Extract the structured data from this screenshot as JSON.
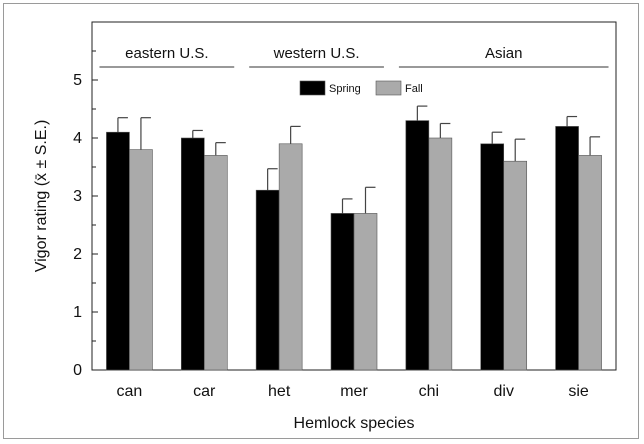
{
  "chart_data": {
    "type": "bar",
    "title": "",
    "xlabel": "Hemlock species",
    "ylabel": "Vigor rating (x̄ ± S.E.)",
    "ylim": [
      0,
      6
    ],
    "yticks": [
      0,
      1,
      2,
      3,
      4,
      5
    ],
    "categories": [
      "can",
      "car",
      "het",
      "mer",
      "chi",
      "div",
      "sie"
    ],
    "series": [
      {
        "name": "Spring",
        "color": "#000000",
        "values": [
          4.1,
          4.0,
          3.1,
          2.7,
          4.3,
          3.9,
          4.2
        ],
        "errors": [
          0.25,
          0.13,
          0.37,
          0.25,
          0.25,
          0.2,
          0.17
        ]
      },
      {
        "name": "Fall",
        "color": "#aaaaaa",
        "values": [
          3.8,
          3.7,
          3.9,
          2.7,
          4.0,
          3.6,
          3.7
        ],
        "errors": [
          0.55,
          0.22,
          0.3,
          0.45,
          0.25,
          0.38,
          0.32
        ]
      }
    ],
    "groups": [
      {
        "label": "eastern U.S.",
        "categories": [
          "can",
          "car"
        ]
      },
      {
        "label": "western U.S.",
        "categories": [
          "het",
          "mer"
        ]
      },
      {
        "label": "Asian",
        "categories": [
          "chi",
          "div",
          "sie"
        ]
      }
    ],
    "legend_position": "top-center",
    "grid": false
  }
}
